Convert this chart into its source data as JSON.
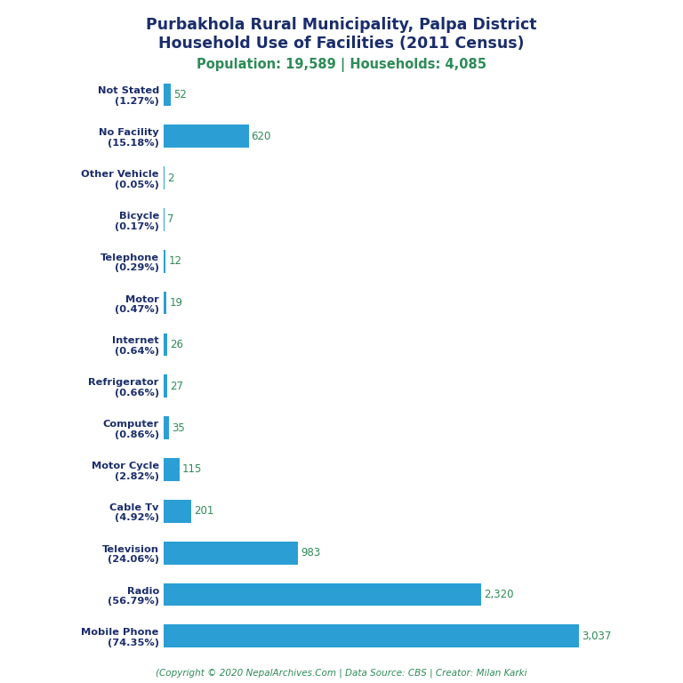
{
  "title_line1": "Purbakhola Rural Municipality, Palpa District",
  "title_line2": "Household Use of Facilities (2011 Census)",
  "subtitle": "Population: 19,589 | Households: 4,085",
  "categories": [
    "Mobile Phone\n(74.35%)",
    "Radio\n(56.79%)",
    "Television\n(24.06%)",
    "Cable Tv\n(4.92%)",
    "Motor Cycle\n(2.82%)",
    "Computer\n(0.86%)",
    "Refrigerator\n(0.66%)",
    "Internet\n(0.64%)",
    "Motor\n(0.47%)",
    "Telephone\n(0.29%)",
    "Bicycle\n(0.17%)",
    "Other Vehicle\n(0.05%)",
    "No Facility\n(15.18%)",
    "Not Stated\n(1.27%)"
  ],
  "values": [
    3037,
    2320,
    983,
    201,
    115,
    35,
    27,
    26,
    19,
    12,
    7,
    2,
    620,
    52
  ],
  "bar_color": "#2b9fd4",
  "title_color": "#1a2d6b",
  "subtitle_color": "#2e8b57",
  "value_color": "#2e8b57",
  "copyright_text": "(Copyright © 2020 NepalArchives.Com | Data Source: CBS | Creator: Milan Karki",
  "copyright_color": "#2e8b57",
  "background_color": "#ffffff",
  "xlim": [
    0,
    3350
  ]
}
